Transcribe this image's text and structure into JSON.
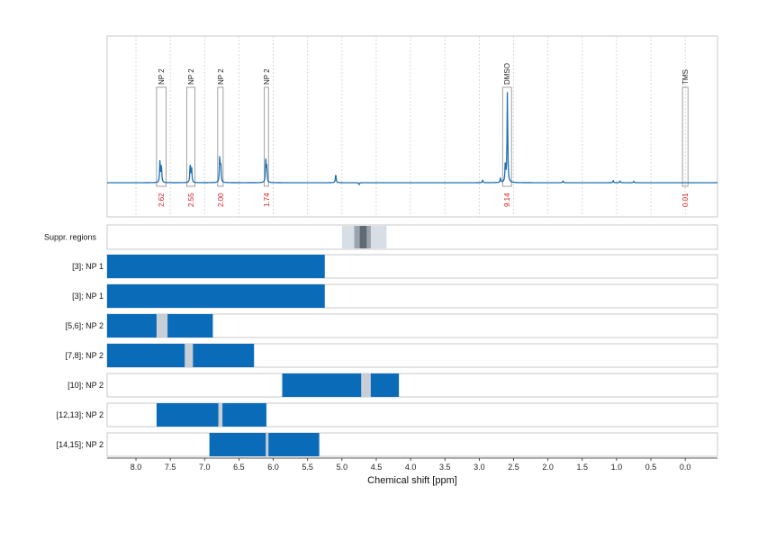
{
  "chart_data": {
    "type": "line",
    "xlabel": "Chemical shift [ppm]",
    "x_axis": {
      "reversed": true,
      "xlim": [
        8.42,
        -0.47
      ],
      "ticks": [
        8.0,
        7.5,
        7.0,
        6.5,
        6.0,
        5.5,
        5.0,
        4.5,
        4.0,
        3.5,
        3.0,
        2.5,
        2.0,
        1.5,
        1.0,
        0.5,
        0.0
      ],
      "tick_labels": [
        "8.0",
        "7.5",
        "7.0",
        "6.5",
        "6.0",
        "5.5",
        "5.0",
        "4.5",
        "4.0",
        "3.5",
        "3.0",
        "2.5",
        "2.0",
        "1.5",
        "1.0",
        "0.5",
        "0.0"
      ]
    },
    "grid": "vertical dotted",
    "spectrum": {
      "color": "#1f6fb2",
      "baseline": 0,
      "peaks": [
        {
          "ppm": 7.65,
          "height": 0.25
        },
        {
          "ppm": 7.63,
          "height": 0.2
        },
        {
          "ppm": 7.21,
          "height": 0.22
        },
        {
          "ppm": 7.19,
          "height": 0.17
        },
        {
          "ppm": 6.78,
          "height": 0.29
        },
        {
          "ppm": 6.765,
          "height": 0.2
        },
        {
          "ppm": 6.11,
          "height": 0.25
        },
        {
          "ppm": 6.095,
          "height": 0.17
        },
        {
          "ppm": 5.09,
          "height": 0.1
        },
        {
          "ppm": 2.59,
          "height": 1.0
        },
        {
          "ppm": 2.62,
          "height": 0.22
        },
        {
          "ppm": 2.69,
          "height": 0.05
        },
        {
          "ppm": 2.95,
          "height": 0.03
        },
        {
          "ppm": 4.75,
          "height": -0.02
        },
        {
          "ppm": 1.78,
          "height": 0.02
        },
        {
          "ppm": 1.05,
          "height": 0.025
        },
        {
          "ppm": 0.95,
          "height": 0.02
        },
        {
          "ppm": 0.75,
          "height": 0.015
        }
      ]
    },
    "annotations": [
      {
        "label": "NP 2",
        "ppm_from": 7.7,
        "ppm_to": 7.56,
        "integral": "2.62"
      },
      {
        "label": "NP 2",
        "ppm_from": 7.26,
        "ppm_to": 7.14,
        "integral": "2.55"
      },
      {
        "label": "NP 2",
        "ppm_from": 6.81,
        "ppm_to": 6.73,
        "integral": "2.00"
      },
      {
        "label": "NP 2",
        "ppm_from": 6.13,
        "ppm_to": 6.07,
        "integral": "1.74"
      },
      {
        "label": "DMSO",
        "ppm_from": 2.66,
        "ppm_to": 2.53,
        "integral": "9.14"
      },
      {
        "label": "TMS",
        "ppm_from": 0.04,
        "ppm_to": -0.04,
        "integral": "0.01"
      }
    ],
    "integral_color": "#d7191c",
    "suppression": {
      "label": "Suppr. regions",
      "bands": [
        {
          "from": 5.0,
          "to": 4.35,
          "shade": "light"
        },
        {
          "from": 4.82,
          "to": 4.58,
          "shade": "medium"
        },
        {
          "from": 4.74,
          "to": 4.64,
          "shade": "dark"
        }
      ]
    },
    "rows": [
      {
        "label": "[3]; NP 1",
        "bars": [
          {
            "from": 8.42,
            "to": 5.25
          }
        ],
        "gaps": []
      },
      {
        "label": "[3]; NP 1",
        "bars": [
          {
            "from": 8.42,
            "to": 5.25
          }
        ],
        "gaps": []
      },
      {
        "label": "[5,6]; NP 2",
        "bars": [
          {
            "from": 8.42,
            "to": 6.88
          }
        ],
        "gaps": [
          {
            "from": 7.7,
            "to": 7.54
          }
        ]
      },
      {
        "label": "[7,8]; NP 2",
        "bars": [
          {
            "from": 8.42,
            "to": 6.28
          }
        ],
        "gaps": [
          {
            "from": 7.29,
            "to": 7.17
          }
        ]
      },
      {
        "label": "[10]; NP 2",
        "bars": [
          {
            "from": 5.87,
            "to": 4.17
          }
        ],
        "gaps": [
          {
            "from": 4.72,
            "to": 4.58
          }
        ]
      },
      {
        "label": "[12,13]; NP 2",
        "bars": [
          {
            "from": 7.7,
            "to": 6.1
          }
        ],
        "gaps": [
          {
            "from": 6.8,
            "to": 6.74
          }
        ]
      },
      {
        "label": "[14,15]; NP 2",
        "bars": [
          {
            "from": 6.93,
            "to": 5.33
          }
        ],
        "gaps": [
          {
            "from": 6.11,
            "to": 6.07
          }
        ]
      }
    ],
    "bar_color": "#0a6cb9",
    "gap_color": "#c8ced6"
  }
}
